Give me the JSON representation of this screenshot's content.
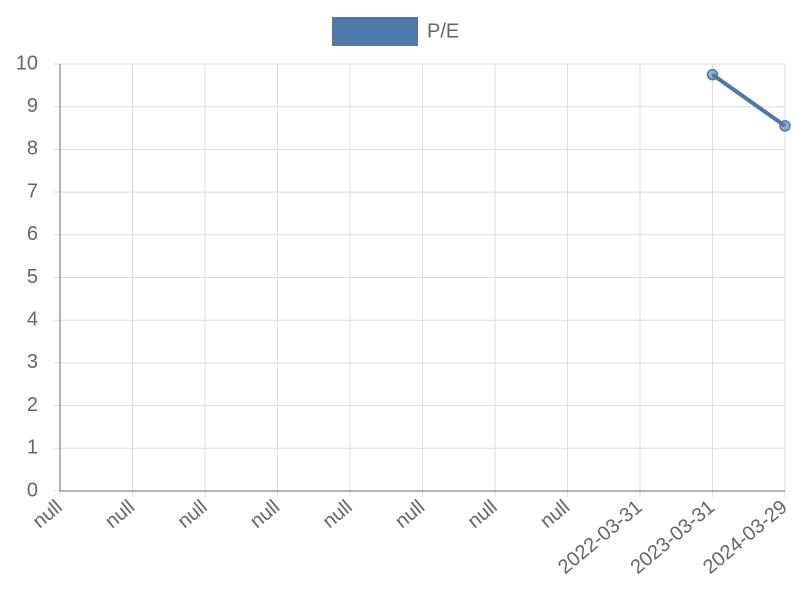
{
  "chart_data": {
    "type": "line",
    "categories": [
      "null",
      "null",
      "null",
      "null",
      "null",
      "null",
      "null",
      "null",
      "2022-03-31",
      "2023-03-31",
      "2024-03-29"
    ],
    "series": [
      {
        "name": "P/E",
        "color": "#4e79a7",
        "values": [
          null,
          null,
          null,
          null,
          null,
          null,
          null,
          null,
          null,
          9.75,
          8.55
        ]
      }
    ],
    "ylim": [
      0,
      10
    ],
    "yticks": [
      0,
      1,
      2,
      3,
      4,
      5,
      6,
      7,
      8,
      9,
      10
    ],
    "grid": true,
    "legend": "top"
  }
}
